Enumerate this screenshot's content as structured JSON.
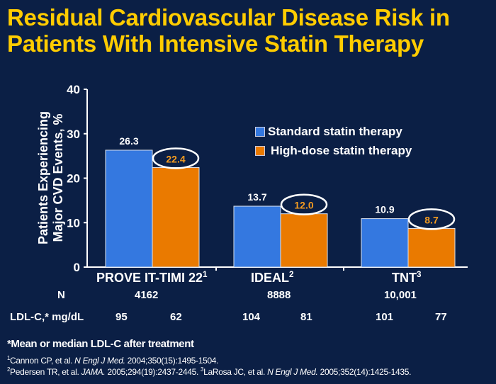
{
  "title": "Residual Cardiovascular Disease Risk in Patients With Intensive Statin Therapy",
  "colors": {
    "background": "#0b1f45",
    "title": "#ffcc00",
    "standard": "#3478e0",
    "high_dose": "#ea7a00",
    "high_dose_label": "#f29a20"
  },
  "chart_data": {
    "type": "bar",
    "ylabel": "Patients Experiencing Major CVD Events, %",
    "ylim": [
      0,
      40
    ],
    "yticks": [
      "0",
      "10",
      "20",
      "30",
      "40"
    ],
    "categories": [
      "PROVE IT-TIMI 22",
      "IDEAL",
      "TNT"
    ],
    "category_refs": [
      "1",
      "2",
      "3"
    ],
    "series": [
      {
        "name": "Standard statin therapy",
        "values": [
          26.3,
          13.7,
          10.9
        ],
        "labels": [
          "26.3",
          "13.7",
          "10.9"
        ]
      },
      {
        "name": "High-dose statin therapy",
        "values": [
          22.4,
          12.0,
          8.7
        ],
        "labels": [
          "22.4",
          "12.0",
          "8.7"
        ],
        "circled": true
      }
    ],
    "legend_position": "top-right",
    "grid": false
  },
  "table": {
    "n_label": "N",
    "n_values": [
      "4162",
      "8888",
      "10,001"
    ],
    "ldl_label": "LDL-C,* mg/dL",
    "ldl_values": [
      "95",
      "62",
      "104",
      "81",
      "101",
      "77"
    ]
  },
  "footnote": "*Mean or median LDL-C after treatment",
  "references": [
    {
      "num": "1",
      "pre": "Cannon CP, et al. ",
      "journal": "N Engl J Med.",
      "post": " 2004;350(15):1495-1504."
    },
    {
      "num": "2",
      "pre": "Pedersen TR, et al. ",
      "journal": "JAMA.",
      "post": " 2005;294(19):2437-2445. "
    },
    {
      "num": "3",
      "pre": "LaRosa JC, et al. ",
      "journal": "N Engl J Med.",
      "post": " 2005;352(14):1425-1435."
    }
  ]
}
